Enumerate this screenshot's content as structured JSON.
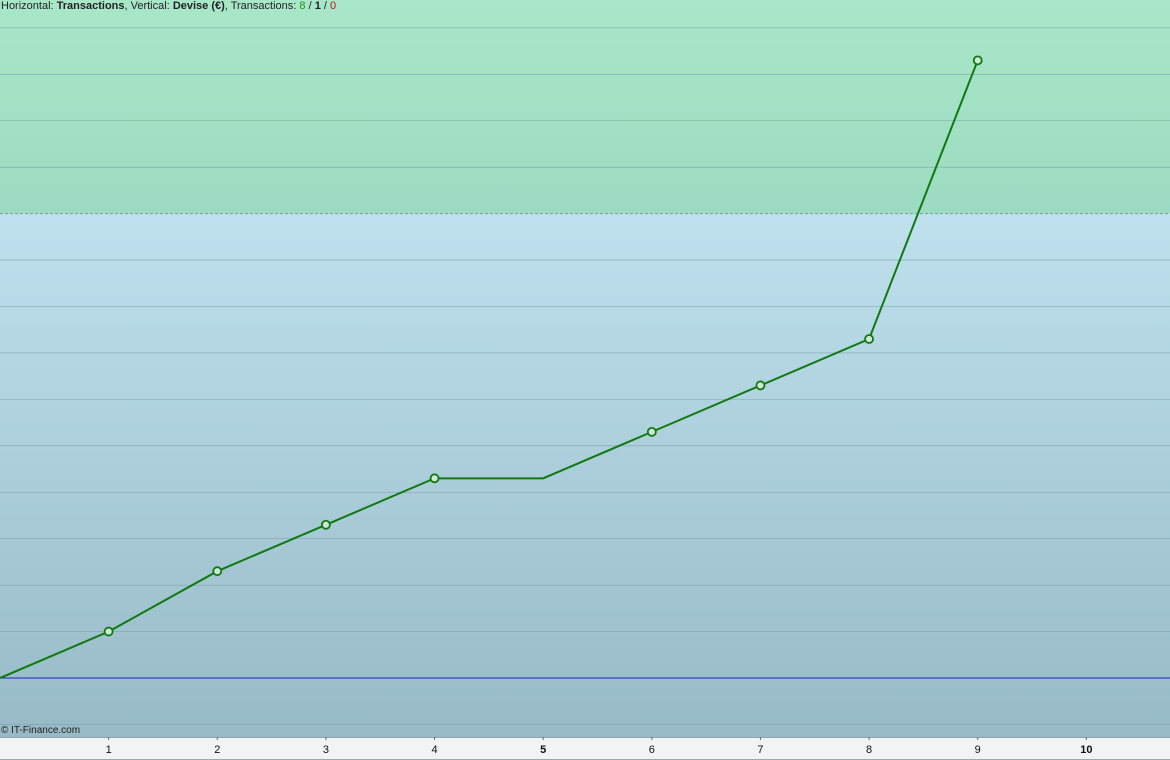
{
  "header": {
    "horizontal_label": "Horizontal:",
    "horizontal": "Transactions",
    "vertical_label": ", Vertical:",
    "vertical": "Devise (€)",
    "count_label": ", Transactions:",
    "counts": [
      8,
      1,
      0
    ],
    "separator": "/"
  },
  "copyright": "© IT-Finance.com",
  "chart_data": {
    "type": "line",
    "x": [
      0,
      1,
      2,
      3,
      4,
      5,
      6,
      7,
      8,
      9
    ],
    "series": [
      {
        "color": "#107a10",
        "values": [
          0,
          1,
          2.3,
          3.3,
          4.3,
          4.3,
          5.3,
          6.3,
          7.3,
          13.3
        ],
        "markers": [
          false,
          true,
          true,
          true,
          true,
          false,
          true,
          true,
          true,
          true
        ]
      }
    ],
    "xlim": [
      0,
      10.77
    ],
    "xticks": [
      1,
      2,
      3,
      4,
      5,
      6,
      7,
      8,
      9,
      10
    ],
    "ylim": [
      -1.27,
      14.6
    ],
    "yticks": [
      -1,
      0,
      1,
      2,
      3,
      4,
      5,
      6,
      7,
      8,
      9,
      10,
      11,
      12,
      13,
      14
    ],
    "grid": true,
    "zero_line_color": "#2020c0",
    "zone_line": 10
  }
}
